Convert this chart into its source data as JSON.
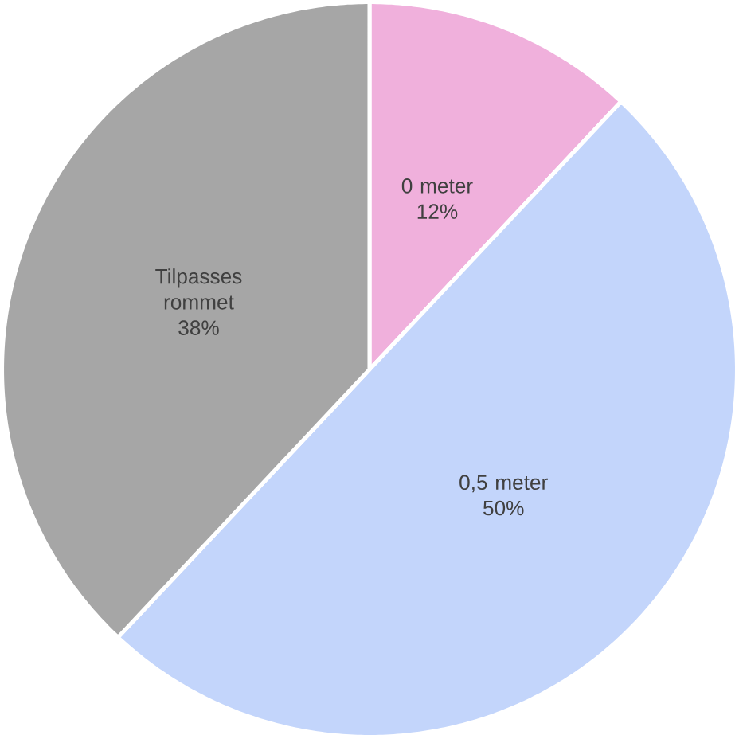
{
  "chart_data": {
    "type": "pie",
    "categories": [
      "0 meter",
      "0,5 meter",
      "Tilpasses rommet"
    ],
    "values": [
      12,
      50,
      38
    ],
    "colors": [
      "#f0b0dc",
      "#c3d5fb",
      "#a6a6a6"
    ],
    "value_labels": [
      "12%",
      "50%",
      "38%"
    ]
  }
}
